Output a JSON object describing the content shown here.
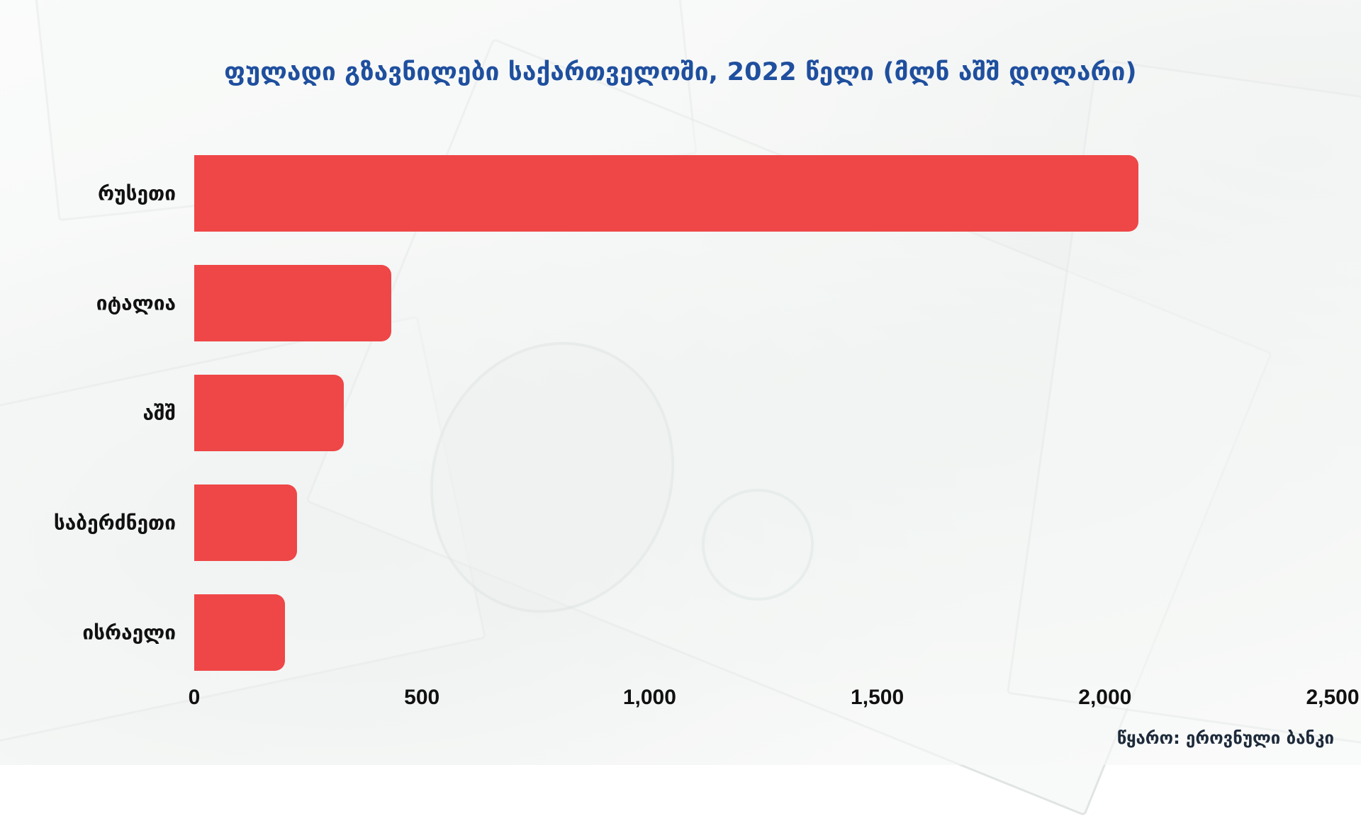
{
  "chart_data": {
    "type": "bar",
    "orientation": "horizontal",
    "title": "ფულადი გზავნილები საქართველოში, 2022 წელი (მლნ აშშ დოლარი)",
    "categories": [
      "რუსეთი",
      "იტალია",
      "აშშ",
      "საბერძნეთი",
      "ისრაელი"
    ],
    "values": [
      2073,
      432,
      328,
      225,
      200
    ],
    "xlim": [
      0,
      2500
    ],
    "xticks": [
      0,
      500,
      1000,
      1500,
      2000,
      2500
    ],
    "xtick_labels": [
      "0",
      "500",
      "1,000",
      "1,500",
      "2,000",
      "2,500"
    ],
    "grid": false,
    "legend": "none",
    "bar_color": "#ef4647",
    "title_color": "#1f4f9e"
  },
  "source": "წყარო: ეროვნული ბანკი"
}
